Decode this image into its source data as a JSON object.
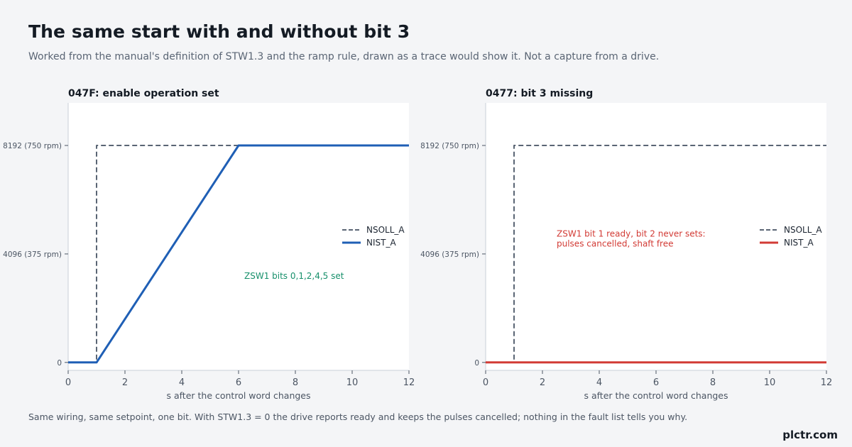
{
  "header": {
    "title": "The same start with and without bit 3",
    "subtitle": "Worked from the manual's definition of STW1.3 and the ramp rule, drawn as a trace would show it. Not a capture from a drive."
  },
  "footer": {
    "note": "Same wiring, same setpoint, one bit. With STW1.3 = 0 the drive reports ready and keeps the pulses cancelled; nothing in the fault list tells you why.",
    "brand": "plctr.com"
  },
  "colors": {
    "setpoint": "#5a6574",
    "actual_ok": "#1f5fb5",
    "actual_fault": "#d23b35",
    "annotation_ok": "#17906b",
    "annotation_fault": "#d23b35",
    "axis": "#c9cfd7",
    "plot_bg": "#ffffff"
  },
  "chart_data": [
    {
      "type": "line",
      "title": "047F: enable operation set",
      "xlabel": "s after the control word changes",
      "ylabel": "",
      "xlim": [
        0,
        12
      ],
      "ylim": [
        -300,
        9800
      ],
      "x_ticks": [
        0,
        2,
        4,
        6,
        8,
        10,
        12
      ],
      "y_ticks": [
        0,
        4096,
        8192
      ],
      "y_tick_labels": [
        "0",
        "4096 (375 rpm)",
        "8192 (750 rpm)"
      ],
      "grid": false,
      "legend_position": "right",
      "series": [
        {
          "name": "NSOLL_A",
          "style": "dashed",
          "color": "#5a6574",
          "x": [
            0,
            1,
            1,
            12
          ],
          "y": [
            0,
            0,
            8192,
            8192
          ]
        },
        {
          "name": "NIST_A",
          "style": "solid",
          "color": "#1f5fb5",
          "x": [
            0,
            1,
            6,
            12
          ],
          "y": [
            0,
            0,
            8192,
            8192
          ]
        }
      ],
      "annotations": [
        {
          "text_lines": [
            "ZSW1 bits 0,1,2,4,5 set"
          ],
          "x": 6.2,
          "y": 3150,
          "color": "#17906b"
        }
      ]
    },
    {
      "type": "line",
      "title": "0477: bit 3 missing",
      "xlabel": "s after the control word changes",
      "ylabel": "",
      "xlim": [
        0,
        12
      ],
      "ylim": [
        -300,
        9800
      ],
      "x_ticks": [
        0,
        2,
        4,
        6,
        8,
        10,
        12
      ],
      "y_ticks": [
        0,
        4096,
        8192
      ],
      "y_tick_labels": [
        "0",
        "4096 (375 rpm)",
        "8192 (750 rpm)"
      ],
      "grid": false,
      "legend_position": "right",
      "series": [
        {
          "name": "NSOLL_A",
          "style": "dashed",
          "color": "#5a6574",
          "x": [
            0,
            1,
            1,
            12
          ],
          "y": [
            0,
            0,
            8192,
            8192
          ]
        },
        {
          "name": "NIST_A",
          "style": "solid",
          "color": "#d23b35",
          "x": [
            0,
            12
          ],
          "y": [
            0,
            0
          ]
        }
      ],
      "annotations": [
        {
          "text_lines": [
            "ZSW1 bit 1 ready, bit 2 never sets:",
            "pulses cancelled, shaft free"
          ],
          "x": 2.5,
          "y": 4750,
          "color": "#d23b35"
        }
      ]
    }
  ]
}
